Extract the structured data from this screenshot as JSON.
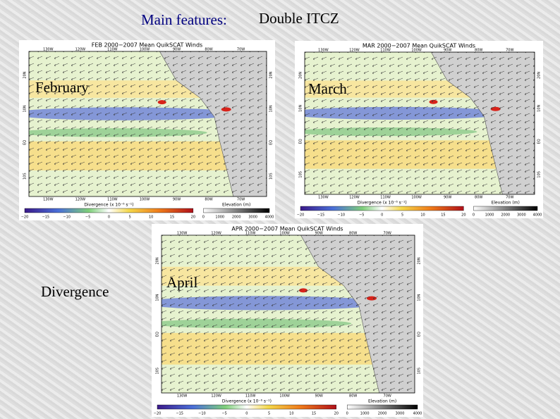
{
  "header": {
    "prefix": "Main features:",
    "title": "Double ITCZ"
  },
  "side_label": "Divergence",
  "panels": [
    {
      "label": "February",
      "title": "FEB 2000−2007 Mean QuikSCAT Winds",
      "lon_labels": [
        "130W",
        "120W",
        "110W",
        "100W",
        "90W",
        "80W",
        "70W"
      ],
      "lat_labels": [
        "20N",
        "10N",
        "EQ",
        "10S"
      ],
      "div_label": "Divergence (x 10⁻⁶ s⁻¹)",
      "div_ticks": [
        "−20",
        "−15",
        "−10",
        "−5",
        "0",
        "5",
        "10",
        "15",
        "20"
      ],
      "elev_label": "Elevation (m)",
      "elev_ticks": [
        "0",
        "1000",
        "2000",
        "3000",
        "4000"
      ]
    },
    {
      "label": "March",
      "title": "MAR 2000−2007 Mean QuikSCAT Winds",
      "lon_labels": [
        "130W",
        "120W",
        "110W",
        "100W",
        "90W",
        "80W",
        "70W"
      ],
      "lat_labels": [
        "20N",
        "10N",
        "EQ",
        "10S"
      ],
      "div_label": "Divergence (x 10⁻⁶ s⁻¹)",
      "div_ticks": [
        "−20",
        "−15",
        "−10",
        "−5",
        "0",
        "5",
        "10",
        "15",
        "20"
      ],
      "elev_label": "Elevation (m)",
      "elev_ticks": [
        "0",
        "1000",
        "2000",
        "3000",
        "4000"
      ]
    },
    {
      "label": "April",
      "title": "APR 2000−2007 Mean QuikSCAT Winds",
      "lon_labels": [
        "130W",
        "120W",
        "110W",
        "100W",
        "90W",
        "80W",
        "70W"
      ],
      "lat_labels": [
        "20N",
        "10N",
        "EQ",
        "10S"
      ],
      "div_label": "Divergence (x 10⁻⁶ s⁻¹)",
      "div_ticks": [
        "−20",
        "−15",
        "−10",
        "−5",
        "0",
        "5",
        "10",
        "15",
        "20"
      ],
      "elev_label": "Elevation (m)",
      "elev_ticks": [
        "0",
        "1000",
        "2000",
        "3000",
        "4000"
      ]
    }
  ]
}
